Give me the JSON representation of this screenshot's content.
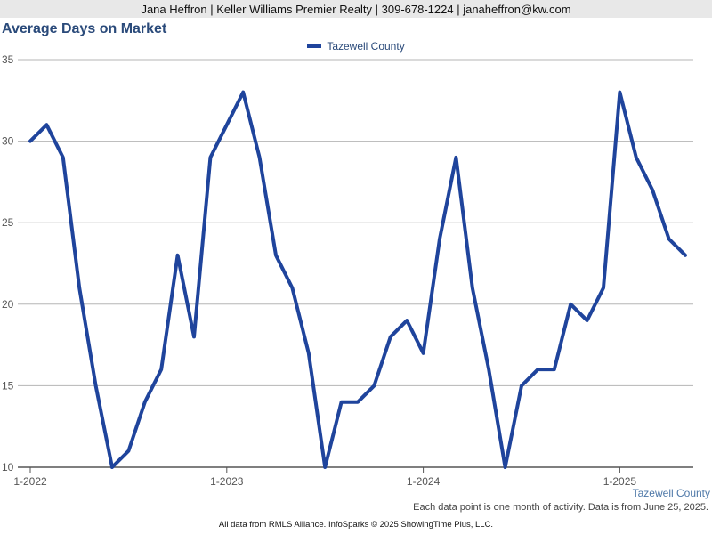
{
  "header": {
    "text": "Jana Heffron | Keller Williams Premier Realty | 309-678-1224 | janaheffron@kw.com"
  },
  "chart_data": {
    "type": "line",
    "title": "Average Days on Market",
    "xlabel": "",
    "ylabel": "",
    "ylim": [
      10,
      35
    ],
    "yticks": [
      10,
      15,
      20,
      25,
      30,
      35
    ],
    "x_tick_labels": [
      "1-2022",
      "1-2023",
      "1-2024",
      "1-2025"
    ],
    "grid": true,
    "legend_position": "top-center",
    "series": [
      {
        "name": "Tazewell County",
        "color": "#1f449c",
        "x": [
          "1-2022",
          "2-2022",
          "3-2022",
          "4-2022",
          "5-2022",
          "6-2022",
          "7-2022",
          "8-2022",
          "9-2022",
          "10-2022",
          "11-2022",
          "12-2022",
          "1-2023",
          "2-2023",
          "3-2023",
          "4-2023",
          "5-2023",
          "6-2023",
          "7-2023",
          "8-2023",
          "9-2023",
          "10-2023",
          "11-2023",
          "12-2023",
          "1-2024",
          "2-2024",
          "3-2024",
          "4-2024",
          "5-2024",
          "6-2024",
          "7-2024",
          "8-2024",
          "9-2024",
          "10-2024",
          "11-2024",
          "12-2024",
          "1-2025",
          "2-2025",
          "3-2025",
          "4-2025",
          "5-2025"
        ],
        "values": [
          30,
          31,
          29,
          21,
          15,
          10,
          11,
          14,
          16,
          23,
          18,
          29,
          31,
          33,
          29,
          23,
          21,
          17,
          10,
          14,
          14,
          15,
          18,
          19,
          17,
          24,
          29,
          21,
          16,
          10,
          15,
          16,
          16,
          20,
          19,
          21,
          33,
          29,
          27,
          24,
          23
        ]
      }
    ]
  },
  "source_label": "Tazewell County",
  "footnote": "Each data point is one month of activity. Data is from June 25, 2025.",
  "copyright": "All data from RMLS Alliance. InfoSparks © 2025 ShowingTime Plus, LLC."
}
